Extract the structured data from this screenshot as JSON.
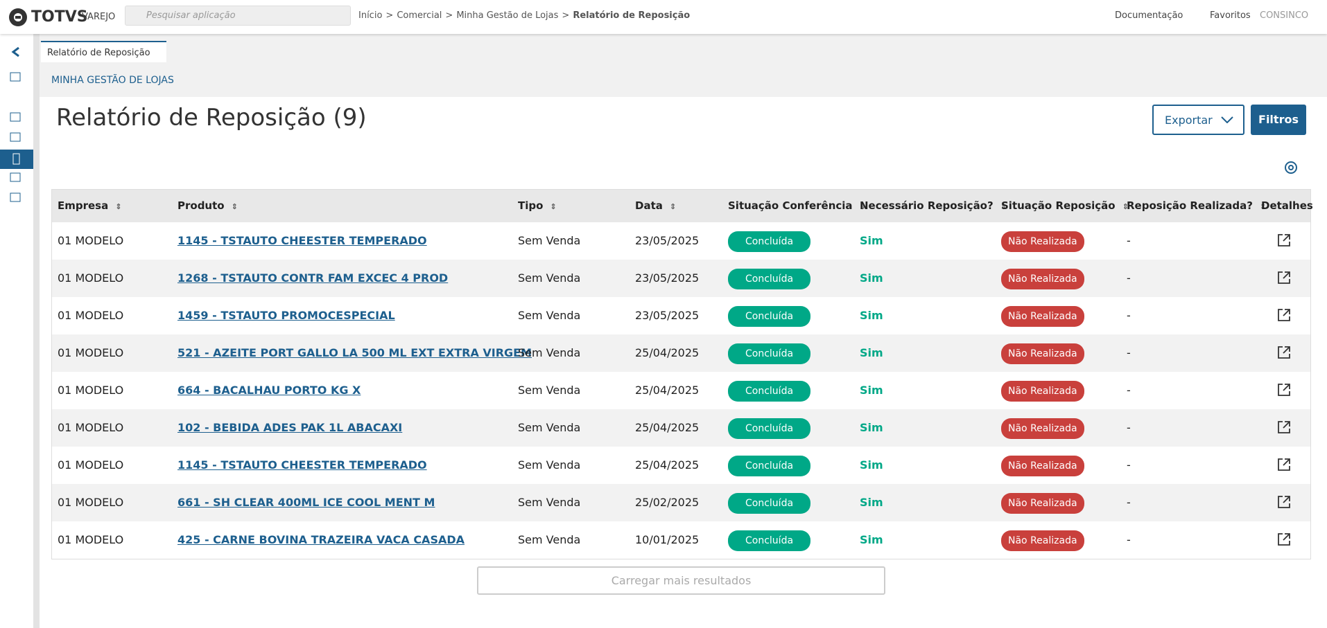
{
  "header": {
    "brand": "TOTVS",
    "product": "VAREJO",
    "search_placeholder": "Pesquisar aplicação",
    "breadcrumb": [
      "Início",
      "Comercial",
      "Minha Gestão de Lojas",
      "Relatório de Reposição"
    ],
    "breadcrumb_separator": ">",
    "links": [
      "Documentação",
      "Favoritos"
    ],
    "user": "CONSINCO"
  },
  "tab": {
    "label": "Relatório de Reposição"
  },
  "section": "MINHA GESTÃO DE LOJAS",
  "title": "Relatório de Reposição (9)",
  "buttons": {
    "export": "Exportar",
    "filters": "Filtros"
  },
  "table": {
    "columns": [
      "Empresa",
      "Produto",
      "Tipo",
      "Data",
      "Situação Conferência",
      "Necessário Reposição?",
      "Situação Reposição",
      "Reposição Realizada?",
      "Detalhes"
    ],
    "rows": [
      [
        "01 MODELO",
        "1145 - TSTAUTO CHEESTER TEMPERADO",
        "Sem Venda",
        "23/05/2025",
        "Concluída",
        "Sim",
        "Não Realizada",
        "-"
      ],
      [
        "01 MODELO",
        "1268 - TSTAUTO CONTR FAM EXCEC 4 PROD",
        "Sem Venda",
        "23/05/2025",
        "Concluída",
        "Sim",
        "Não Realizada",
        "-"
      ],
      [
        "01 MODELO",
        "1459 - TSTAUTO PROMOCESPECIAL",
        "Sem Venda",
        "23/05/2025",
        "Concluída",
        "Sim",
        "Não Realizada",
        "-"
      ],
      [
        "01 MODELO",
        "521 - AZEITE PORT GALLO LA 500 ML EXT EXTRA VIRGEM",
        "Sem Venda",
        "25/04/2025",
        "Concluída",
        "Sim",
        "Não Realizada",
        "-"
      ],
      [
        "01 MODELO",
        "664 - BACALHAU PORTO KG X",
        "Sem Venda",
        "25/04/2025",
        "Concluída",
        "Sim",
        "Não Realizada",
        "-"
      ],
      [
        "01 MODELO",
        "102 - BEBIDA ADES PAK 1L ABACAXI",
        "Sem Venda",
        "25/04/2025",
        "Concluída",
        "Sim",
        "Não Realizada",
        "-"
      ],
      [
        "01 MODELO",
        "1145 - TSTAUTO CHEESTER TEMPERADO",
        "Sem Venda",
        "25/04/2025",
        "Concluída",
        "Sim",
        "Não Realizada",
        "-"
      ],
      [
        "01 MODELO",
        "661 - SH CLEAR 400ML ICE COOL MENT M",
        "Sem Venda",
        "25/02/2025",
        "Concluída",
        "Sim",
        "Não Realizada",
        "-"
      ],
      [
        "01 MODELO",
        "425 - CARNE BOVINA TRAZEIRA VACA CASADA",
        "Sem Venda",
        "10/01/2025",
        "Concluída",
        "Sim",
        "Não Realizada",
        "-"
      ]
    ]
  },
  "load_more": "Carregar mais resultados"
}
